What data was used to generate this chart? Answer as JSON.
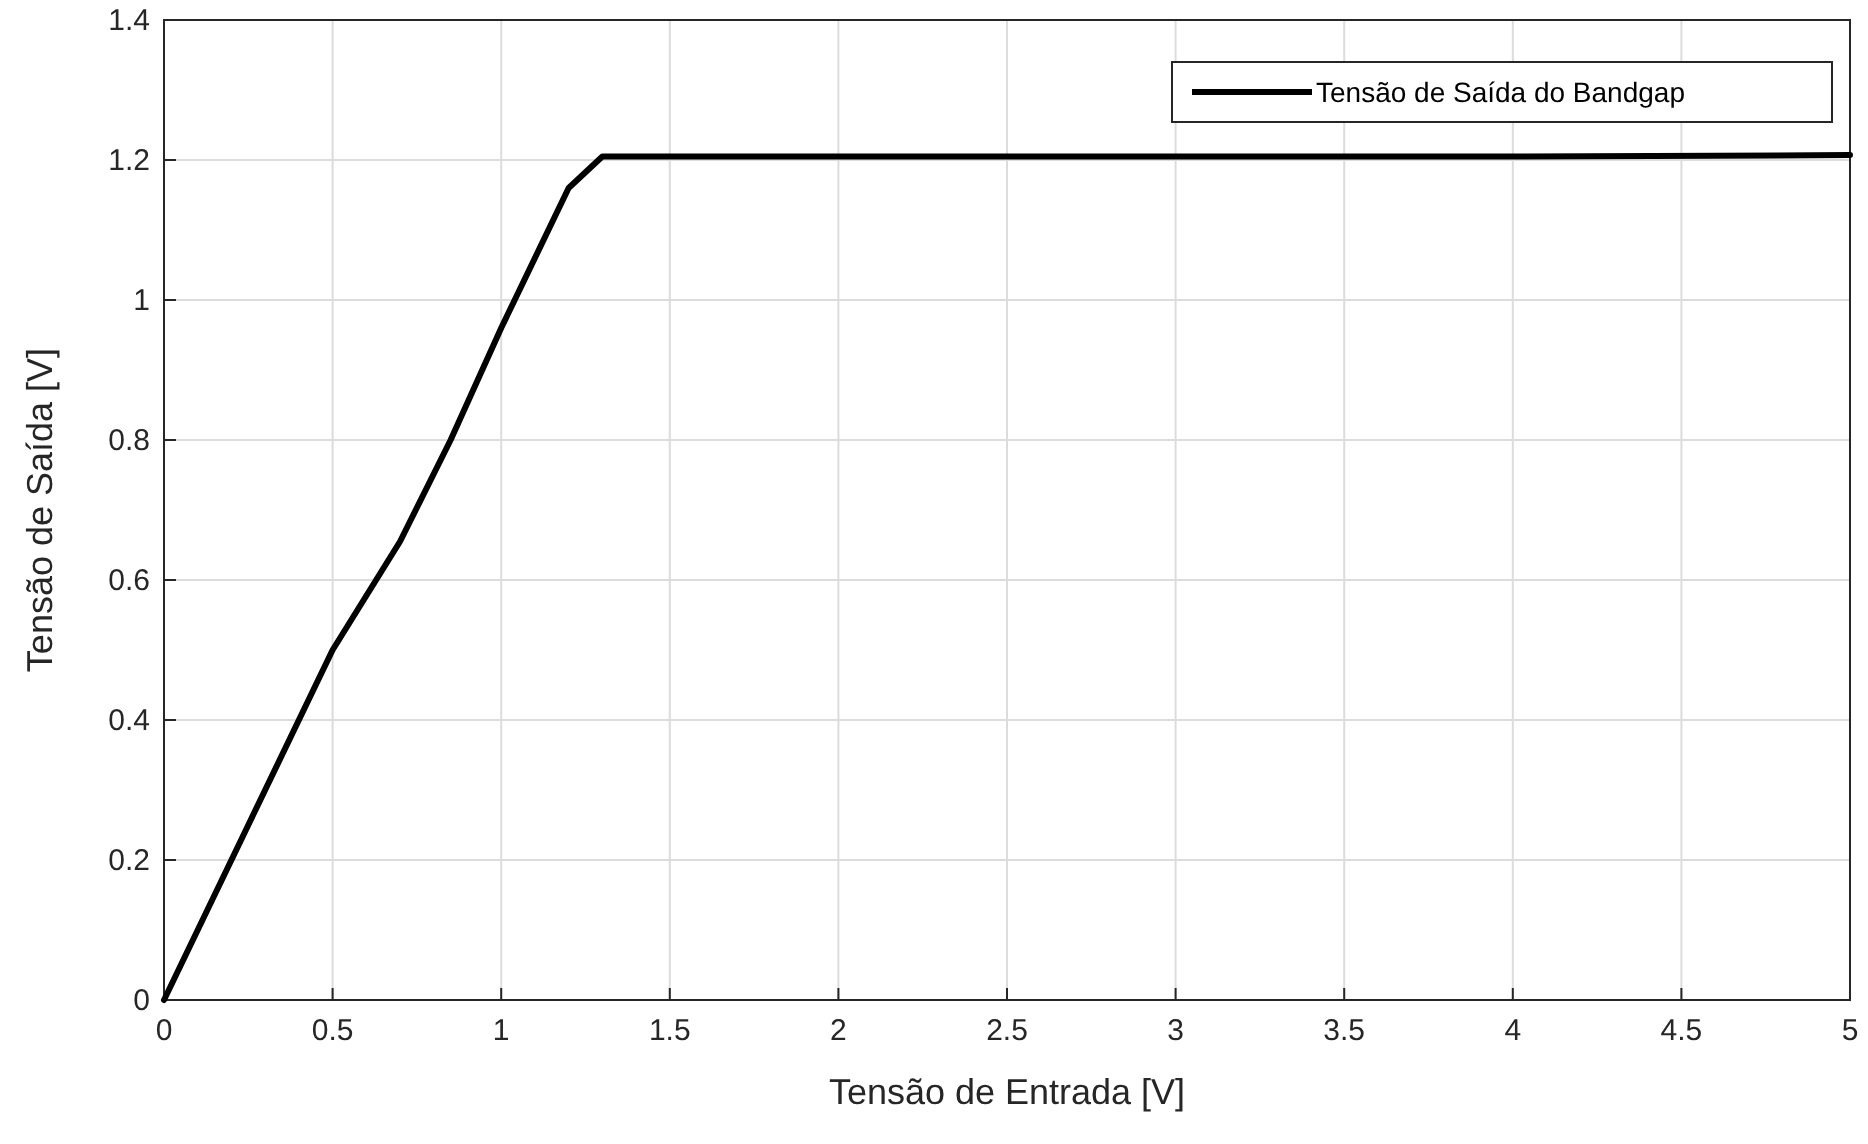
{
  "chart_data": {
    "type": "line",
    "xlabel": "Tensão de Entrada [V]",
    "ylabel": "Tensão de Saída [V]",
    "x": [
      0,
      0.25,
      0.5,
      0.7,
      0.85,
      1.0,
      1.2,
      1.3,
      2,
      3,
      4,
      5
    ],
    "series": [
      {
        "name": "Tensão de Saída do Bandgap",
        "color": "#000000",
        "values": [
          0,
          0.25,
          0.5,
          0.655,
          0.8,
          0.96,
          1.16,
          1.205,
          1.205,
          1.205,
          1.205,
          1.207
        ]
      }
    ],
    "xlim": [
      0,
      5
    ],
    "xticks": [
      0,
      0.5,
      1,
      1.5,
      2,
      2.5,
      3,
      3.5,
      4,
      4.5,
      5
    ],
    "ylim": [
      0,
      1.4
    ],
    "yticks": [
      0,
      0.2,
      0.4,
      0.6,
      0.8,
      1,
      1.2,
      1.4
    ],
    "grid": true,
    "legend": "top right",
    "marker": "none",
    "line_style": "solid"
  }
}
